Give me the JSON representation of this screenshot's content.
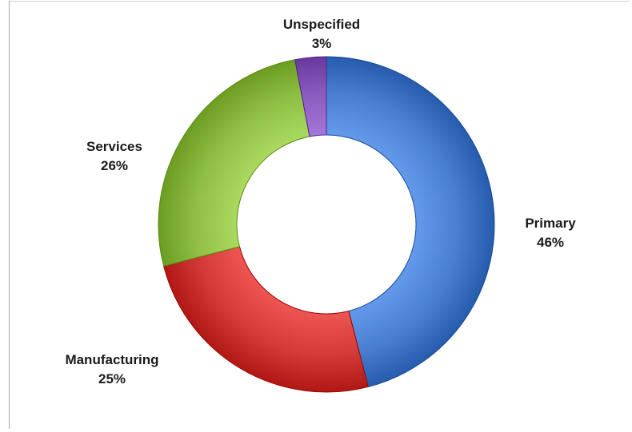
{
  "chart_data": {
    "type": "pie",
    "style": "donut",
    "title": "",
    "categories": [
      "Primary",
      "Manufacturing",
      "Services",
      "Unspecified"
    ],
    "values": [
      46,
      25,
      26,
      3
    ],
    "labels": [
      {
        "name": "Primary",
        "percent": "46%"
      },
      {
        "name": "Manufacturing",
        "percent": "25%"
      },
      {
        "name": "Services",
        "percent": "26%"
      },
      {
        "name": "Unspecified",
        "percent": "3%"
      }
    ],
    "colors": [
      "#4a7fd0",
      "#d33b38",
      "#8fc045",
      "#8a5cc0"
    ],
    "legend": "none"
  }
}
